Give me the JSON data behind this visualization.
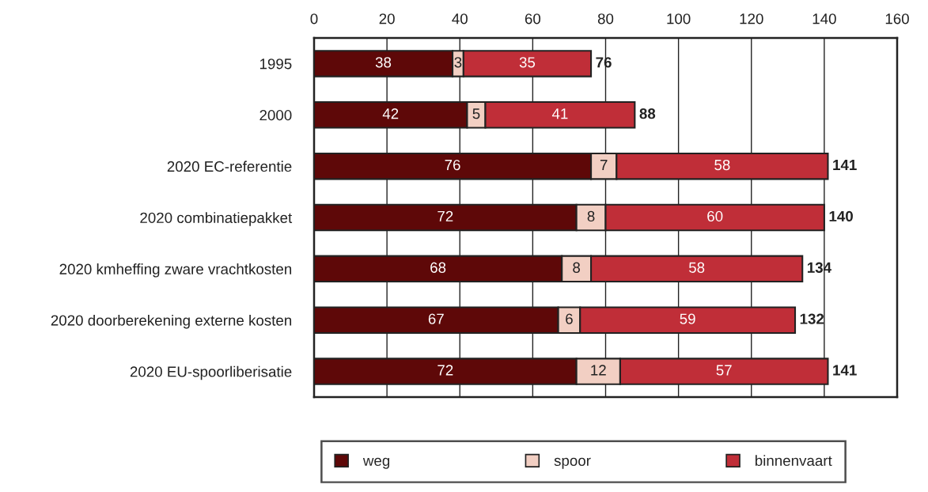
{
  "chart_data": {
    "type": "bar",
    "orientation": "horizontal",
    "stacked": true,
    "categories": [
      "1995",
      "2000",
      "2020 EC-referentie",
      "2020 combinatiepakket",
      "2020 kmheffing zware vrachtkosten",
      "2020 doorberekening externe kosten",
      "2020 EU-spoorliberisatie"
    ],
    "series": [
      {
        "name": "weg",
        "color": "#5e0808",
        "values": [
          38,
          42,
          76,
          72,
          68,
          67,
          72
        ]
      },
      {
        "name": "spoor",
        "color": "#f2cfc3",
        "values": [
          3,
          5,
          7,
          8,
          8,
          6,
          12
        ]
      },
      {
        "name": "binnenvaart",
        "color": "#c02e38",
        "values": [
          35,
          41,
          58,
          60,
          58,
          59,
          57
        ]
      }
    ],
    "totals": [
      "76",
      "88",
      "141",
      "140",
      "134",
      "132",
      "141"
    ],
    "xlim": [
      0,
      160
    ],
    "xticks": [
      0,
      20,
      40,
      60,
      80,
      100,
      120,
      140,
      160
    ],
    "grid": "x",
    "legend": "bottom",
    "data_labels": true
  }
}
